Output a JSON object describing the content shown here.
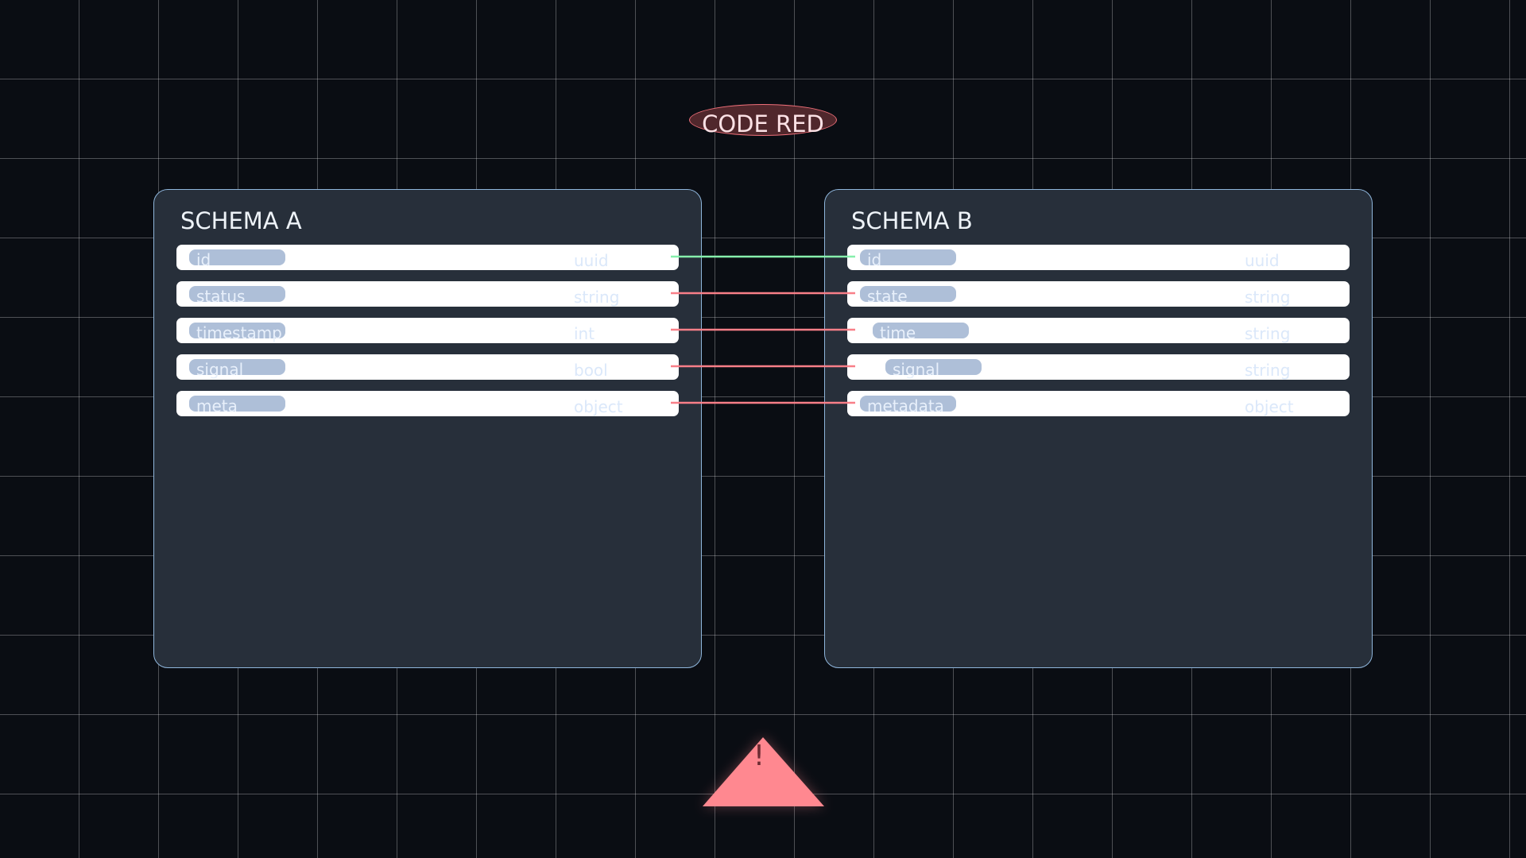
{
  "alert_badge": {
    "label": "CODE RED",
    "fill": "#50272c",
    "stroke": "#f0707a"
  },
  "schemas": [
    {
      "title": "SCHEMA A",
      "fields": [
        {
          "name": "id",
          "type": "uuid"
        },
        {
          "name": "status",
          "type": "string"
        },
        {
          "name": "timestamp",
          "type": "int"
        },
        {
          "name": "signal",
          "type": "bool"
        },
        {
          "name": "meta",
          "type": "object"
        }
      ]
    },
    {
      "title": "SCHEMA B",
      "fields": [
        {
          "name": "id",
          "type": "uuid"
        },
        {
          "name": "state",
          "type": "string"
        },
        {
          "name": "time",
          "type": "string"
        },
        {
          "name": "signal",
          "type": "string"
        },
        {
          "name": "metadata",
          "type": "object"
        }
      ]
    }
  ],
  "mappings": [
    {
      "from": "id",
      "to": "id",
      "status": "match",
      "color": "#86efac"
    },
    {
      "from": "status",
      "to": "state",
      "status": "mismatch",
      "color": "#f87f88"
    },
    {
      "from": "timestamp",
      "to": "time",
      "status": "mismatch",
      "color": "#f87f88"
    },
    {
      "from": "signal",
      "to": "signal",
      "status": "mismatch",
      "color": "#f87f88"
    },
    {
      "from": "meta",
      "to": "metadata",
      "status": "mismatch",
      "color": "#f87f88"
    }
  ],
  "warning": {
    "icon": "warning-triangle-icon",
    "glyph": "!",
    "color": "#ff8890"
  }
}
